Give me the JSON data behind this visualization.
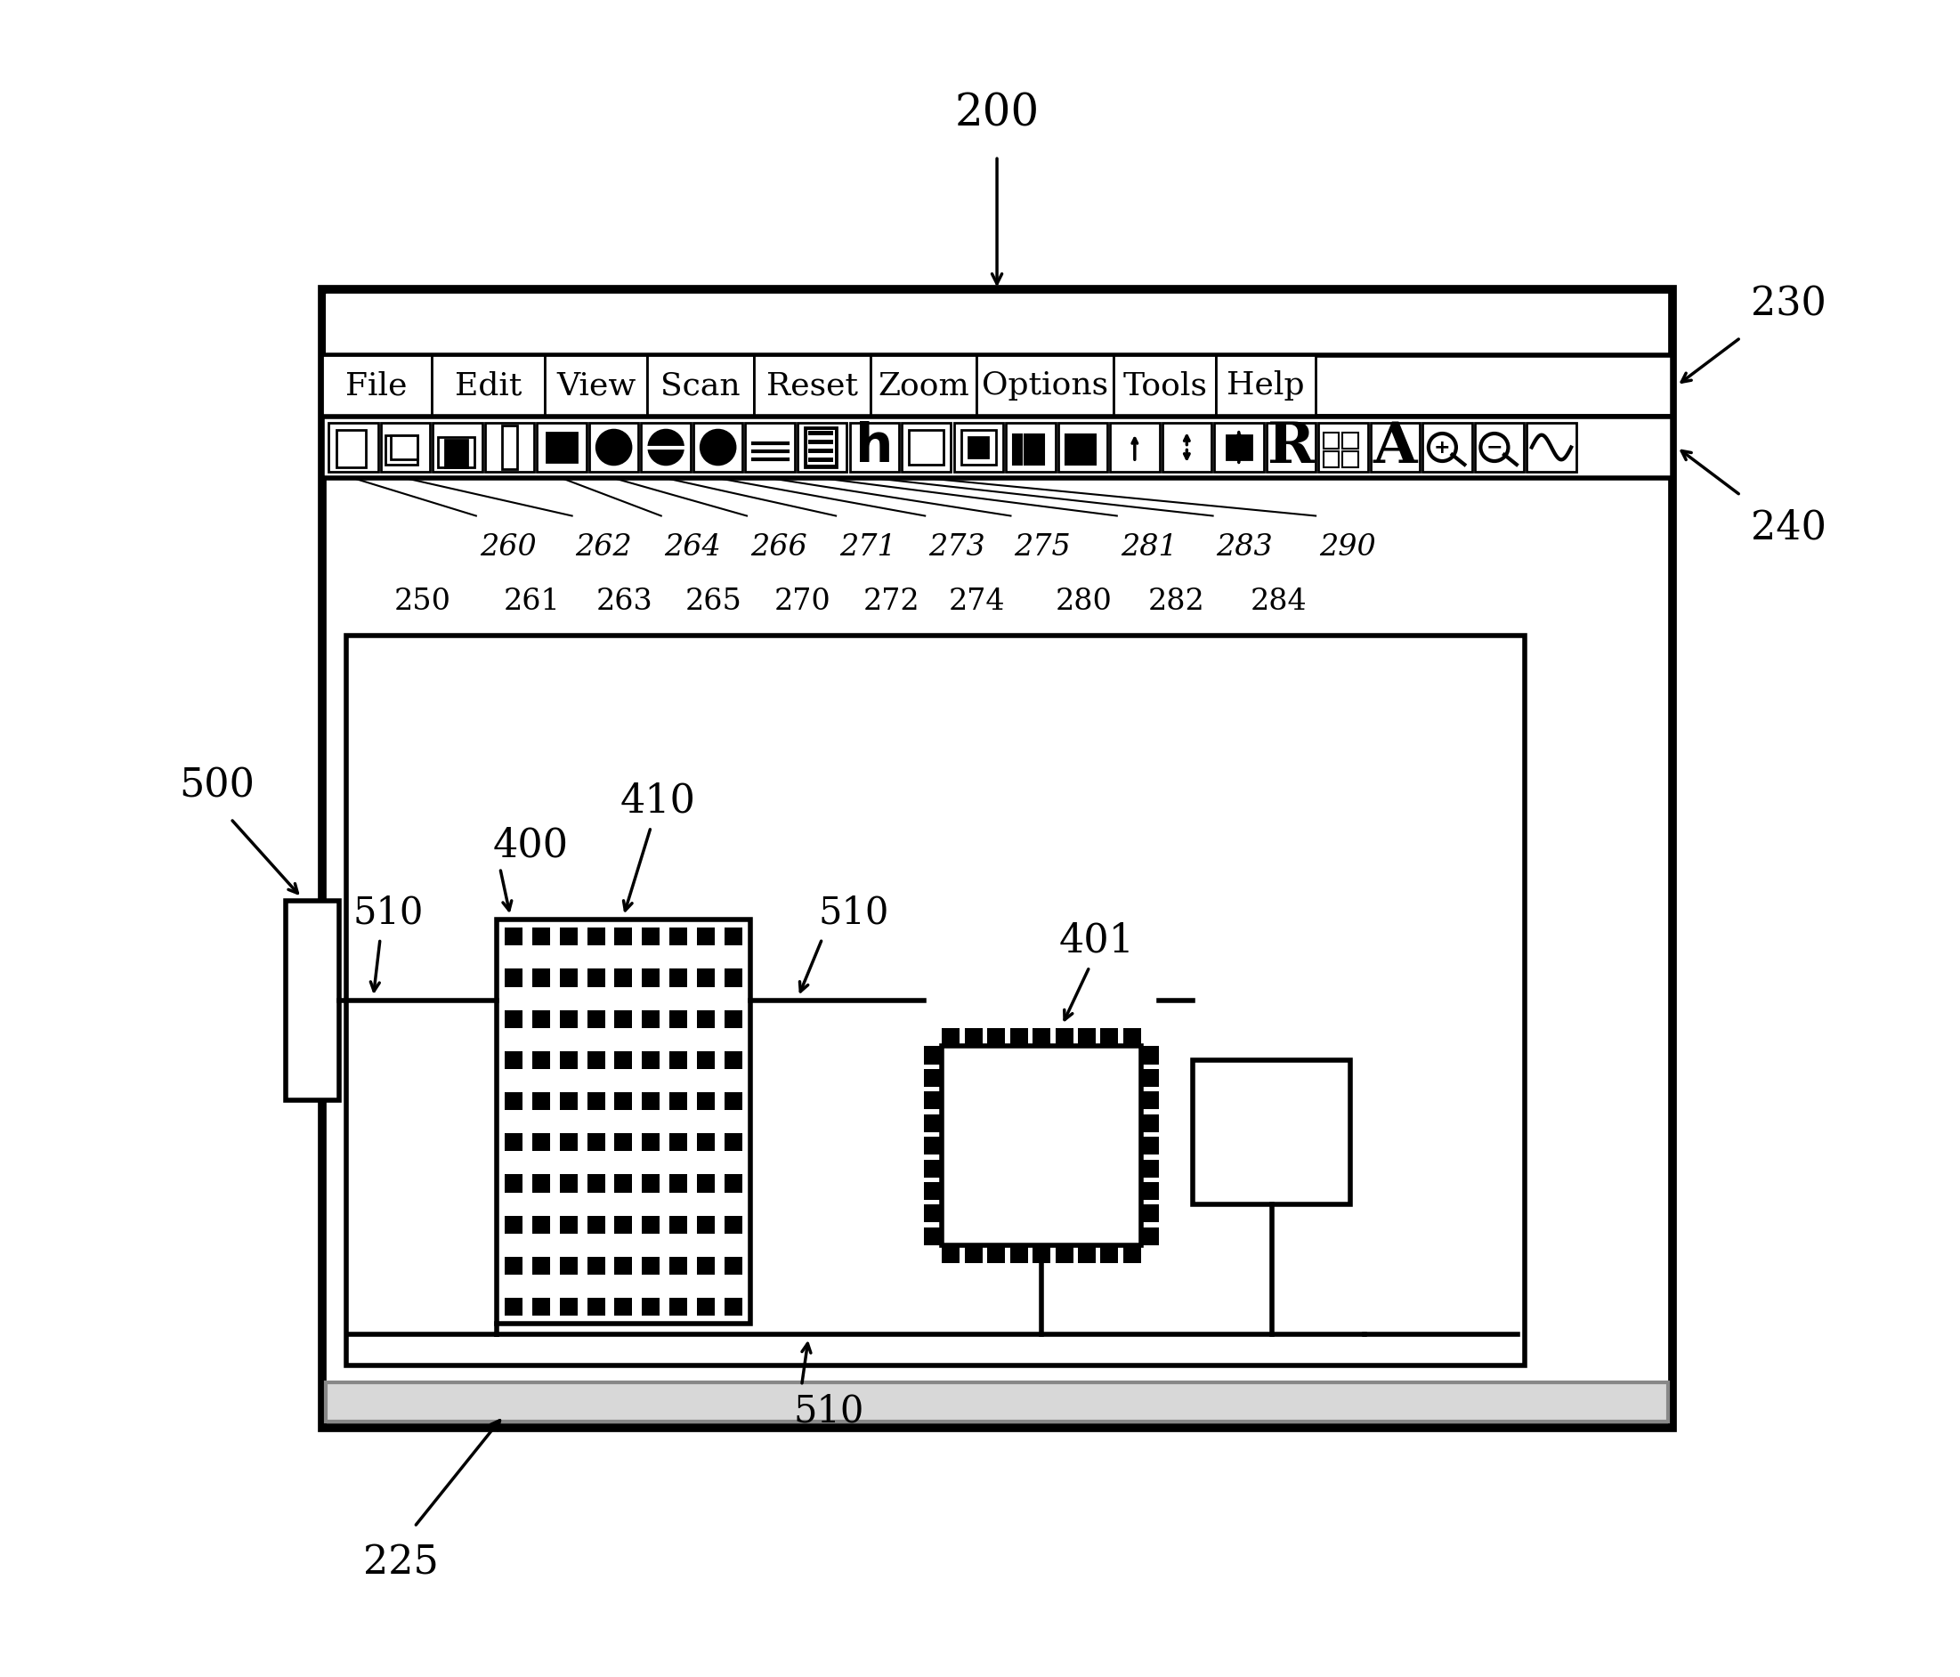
{
  "bg_color": "#ffffff",
  "fig_w": 22.02,
  "fig_h": 18.84,
  "title_label": "200",
  "menu_items": [
    "File",
    "Edit",
    "View",
    "Scan",
    "Reset",
    "Zoom",
    "Options",
    "Tools",
    "Help"
  ],
  "label_230": "230",
  "label_240": "240",
  "label_225": "225",
  "label_500": "500",
  "label_400": "400",
  "label_401": "401",
  "label_410": "410",
  "toolbar_labels_top": [
    "260",
    "262",
    "264",
    "266",
    "271",
    "273",
    "275",
    "281",
    "283",
    "290"
  ],
  "toolbar_labels_bottom": [
    "250",
    "261",
    "263",
    "265",
    "270",
    "272",
    "274",
    "280",
    "282",
    "284"
  ],
  "wire_label": "510"
}
